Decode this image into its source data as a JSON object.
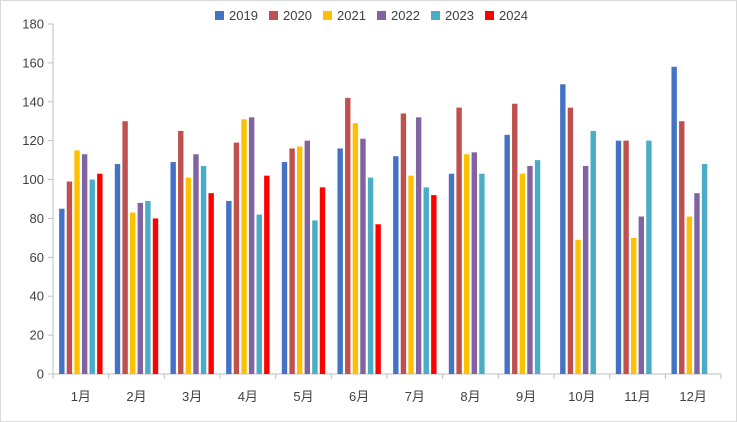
{
  "chart_data": {
    "type": "bar",
    "categories": [
      "1月",
      "2月",
      "3月",
      "4月",
      "5月",
      "6月",
      "7月",
      "8月",
      "9月",
      "10月",
      "11月",
      "12月"
    ],
    "series": [
      {
        "name": "2019",
        "color": "#4472C4",
        "values": [
          85,
          108,
          109,
          89,
          109,
          116,
          112,
          103,
          123,
          149,
          120,
          158
        ]
      },
      {
        "name": "2020",
        "color": "#C0504D",
        "values": [
          99,
          130,
          125,
          119,
          116,
          142,
          134,
          137,
          139,
          137,
          120,
          130
        ]
      },
      {
        "name": "2021",
        "color": "#FFC000",
        "values": [
          115,
          83,
          101,
          131,
          117,
          129,
          102,
          113,
          103,
          69,
          70,
          81
        ]
      },
      {
        "name": "2022",
        "color": "#8064A2",
        "values": [
          113,
          88,
          113,
          132,
          120,
          121,
          132,
          114,
          107,
          107,
          81,
          93
        ]
      },
      {
        "name": "2023",
        "color": "#4BACC6",
        "values": [
          100,
          89,
          107,
          82,
          79,
          101,
          96,
          103,
          110,
          125,
          120,
          108
        ]
      },
      {
        "name": "2024",
        "color": "#FF0000",
        "values": [
          103,
          80,
          93,
          102,
          96,
          77,
          92,
          null,
          null,
          null,
          null,
          null
        ]
      }
    ],
    "yticks": [
      "0",
      "20",
      "40",
      "60",
      "80",
      "100",
      "120",
      "140",
      "160",
      "180"
    ],
    "ylim": [
      0,
      180
    ],
    "grid": false,
    "legend_position": "top"
  }
}
